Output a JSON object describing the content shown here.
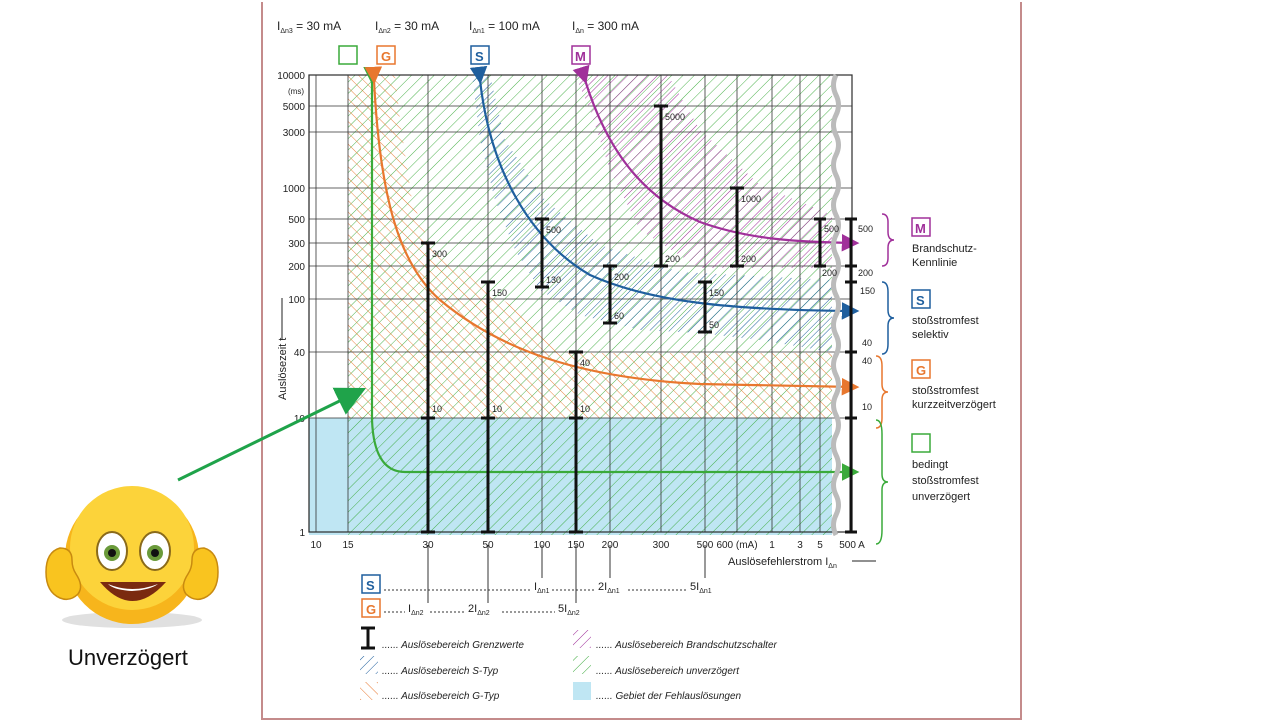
{
  "caption": "Unverzögert",
  "top_labels": [
    {
      "text": "I",
      "sub": "Δn3",
      "rest": " = 30 mA"
    },
    {
      "text": "I",
      "sub": "Δn2",
      "rest": " = 30 mA"
    },
    {
      "text": "I",
      "sub": "Δn1",
      "rest": " = 100 mA"
    },
    {
      "text": "I",
      "sub": "Δn",
      "rest": " = 300 mA"
    }
  ],
  "badges": {
    "g": "G",
    "s": "S",
    "m": "M"
  },
  "colors": {
    "green": "#3aaa3a",
    "orange": "#e8772e",
    "blue": "#1f5f9e",
    "magenta": "#a0309a",
    "cyan_fill": "#bfe6f3",
    "arrow_green": "#1fa34a",
    "frame": "#c48b8b"
  },
  "chart_data": {
    "type": "line",
    "xscale": "log",
    "yscale": "log",
    "ylabel": "Auslösezeit t",
    "xlabel": "Auslösefehlerstrom I",
    "xlabel_sub": "Δn",
    "x_ticks": [
      "10",
      "15",
      "30",
      "50",
      "100",
      "150",
      "200",
      "300",
      "500",
      "600 (mA)",
      "1",
      "3",
      "5",
      "500 A"
    ],
    "y_ticks": [
      "1",
      "10",
      "40",
      "100",
      "200",
      "300",
      "500",
      "1000",
      "3000",
      "5000",
      "10000"
    ],
    "y_unit": "(ms)",
    "series": [
      {
        "name": "stoßstromfest kurzzeitverzögert",
        "badge": "G",
        "color": "#e8772e",
        "x": [
          20,
          30,
          50,
          100,
          150,
          300,
          1000,
          500000
        ],
        "y": [
          10000,
          300,
          80,
          40,
          30,
          25,
          22,
          20
        ]
      },
      {
        "name": "stoßstromfest selektiv",
        "badge": "S",
        "color": "#1f5f9e",
        "x": [
          70,
          100,
          150,
          200,
          300,
          500,
          1000,
          500000
        ],
        "y": [
          10000,
          500,
          200,
          120,
          90,
          80,
          75,
          70
        ]
      },
      {
        "name": "Brandschutz-Kennlinie",
        "badge": "M",
        "color": "#a0309a",
        "x": [
          210,
          300,
          500,
          1000,
          3000,
          500000
        ],
        "y": [
          10000,
          1000,
          500,
          350,
          300,
          300
        ]
      },
      {
        "name": "bedingt stoßstromfest unverzögert",
        "badge": "",
        "color": "#3aaa3a",
        "x": [
          20,
          22,
          30,
          100,
          500000
        ],
        "y": [
          10000,
          10,
          4,
          4,
          4
        ]
      }
    ],
    "limit_bars": [
      {
        "x": "30",
        "top": "300",
        "bottom": "1",
        "labels": [
          "300",
          "10"
        ]
      },
      {
        "x": "50",
        "top": "150",
        "bottom": "1",
        "labels": [
          "150",
          "10"
        ]
      },
      {
        "x": "150",
        "top": "40",
        "bottom": "1",
        "labels": [
          "40",
          "10"
        ]
      },
      {
        "x": "100",
        "top": "500",
        "bottom": "130",
        "labels": [
          "500",
          "130"
        ]
      },
      {
        "x": "200",
        "top": "200",
        "bottom": "60",
        "labels": [
          "200",
          "60"
        ]
      },
      {
        "x": "500",
        "top": "150",
        "bottom": "50",
        "labels": [
          "150",
          "50"
        ]
      },
      {
        "x": "300",
        "top": "5000",
        "bottom": "200",
        "labels": [
          "5000",
          "200"
        ]
      },
      {
        "x": "600 (mA)",
        "top": "1000",
        "bottom": "200",
        "labels": [
          "1000",
          "200"
        ]
      }
    ],
    "right_bar_labels": [
      "500",
      "200",
      "150",
      "40",
      "40",
      "10"
    ],
    "right_legend": [
      {
        "badge": "M",
        "lines": [
          "Brandschutz-",
          "Kennlinie"
        ]
      },
      {
        "badge": "S",
        "lines": [
          "stoßstromfest",
          "selektiv"
        ]
      },
      {
        "badge": "G",
        "lines": [
          "stoßstromfest",
          "kurzzeitverzögert"
        ]
      },
      {
        "badge": "",
        "lines": [
          "bedingt",
          "stoßstromfest",
          "unverzögert"
        ]
      }
    ],
    "s_axis": {
      "badge": "S",
      "labels": [
        "I",
        "2I",
        "5I"
      ],
      "subs": [
        "Δn1",
        "Δn1",
        "Δn1"
      ]
    },
    "g_axis": {
      "badge": "G",
      "labels": [
        "I",
        "2I",
        "5I"
      ],
      "subs": [
        "Δn2",
        "Δn2",
        "Δn2"
      ]
    },
    "legend": [
      {
        "key": "bar",
        "text": "Auslösebereich Grenzwerte"
      },
      {
        "key": "magenta-hatch",
        "text": "Auslösebereich Brandschutzschalter"
      },
      {
        "key": "blue-hatch",
        "text": "Auslösebereich S-Typ"
      },
      {
        "key": "green-hatch",
        "text": "Auslösebereich unverzögert"
      },
      {
        "key": "orange-hatch",
        "text": "Auslösebereich G-Typ"
      },
      {
        "key": "cyan-fill",
        "text": "Gebiet der Fehlauslösungen"
      }
    ]
  }
}
